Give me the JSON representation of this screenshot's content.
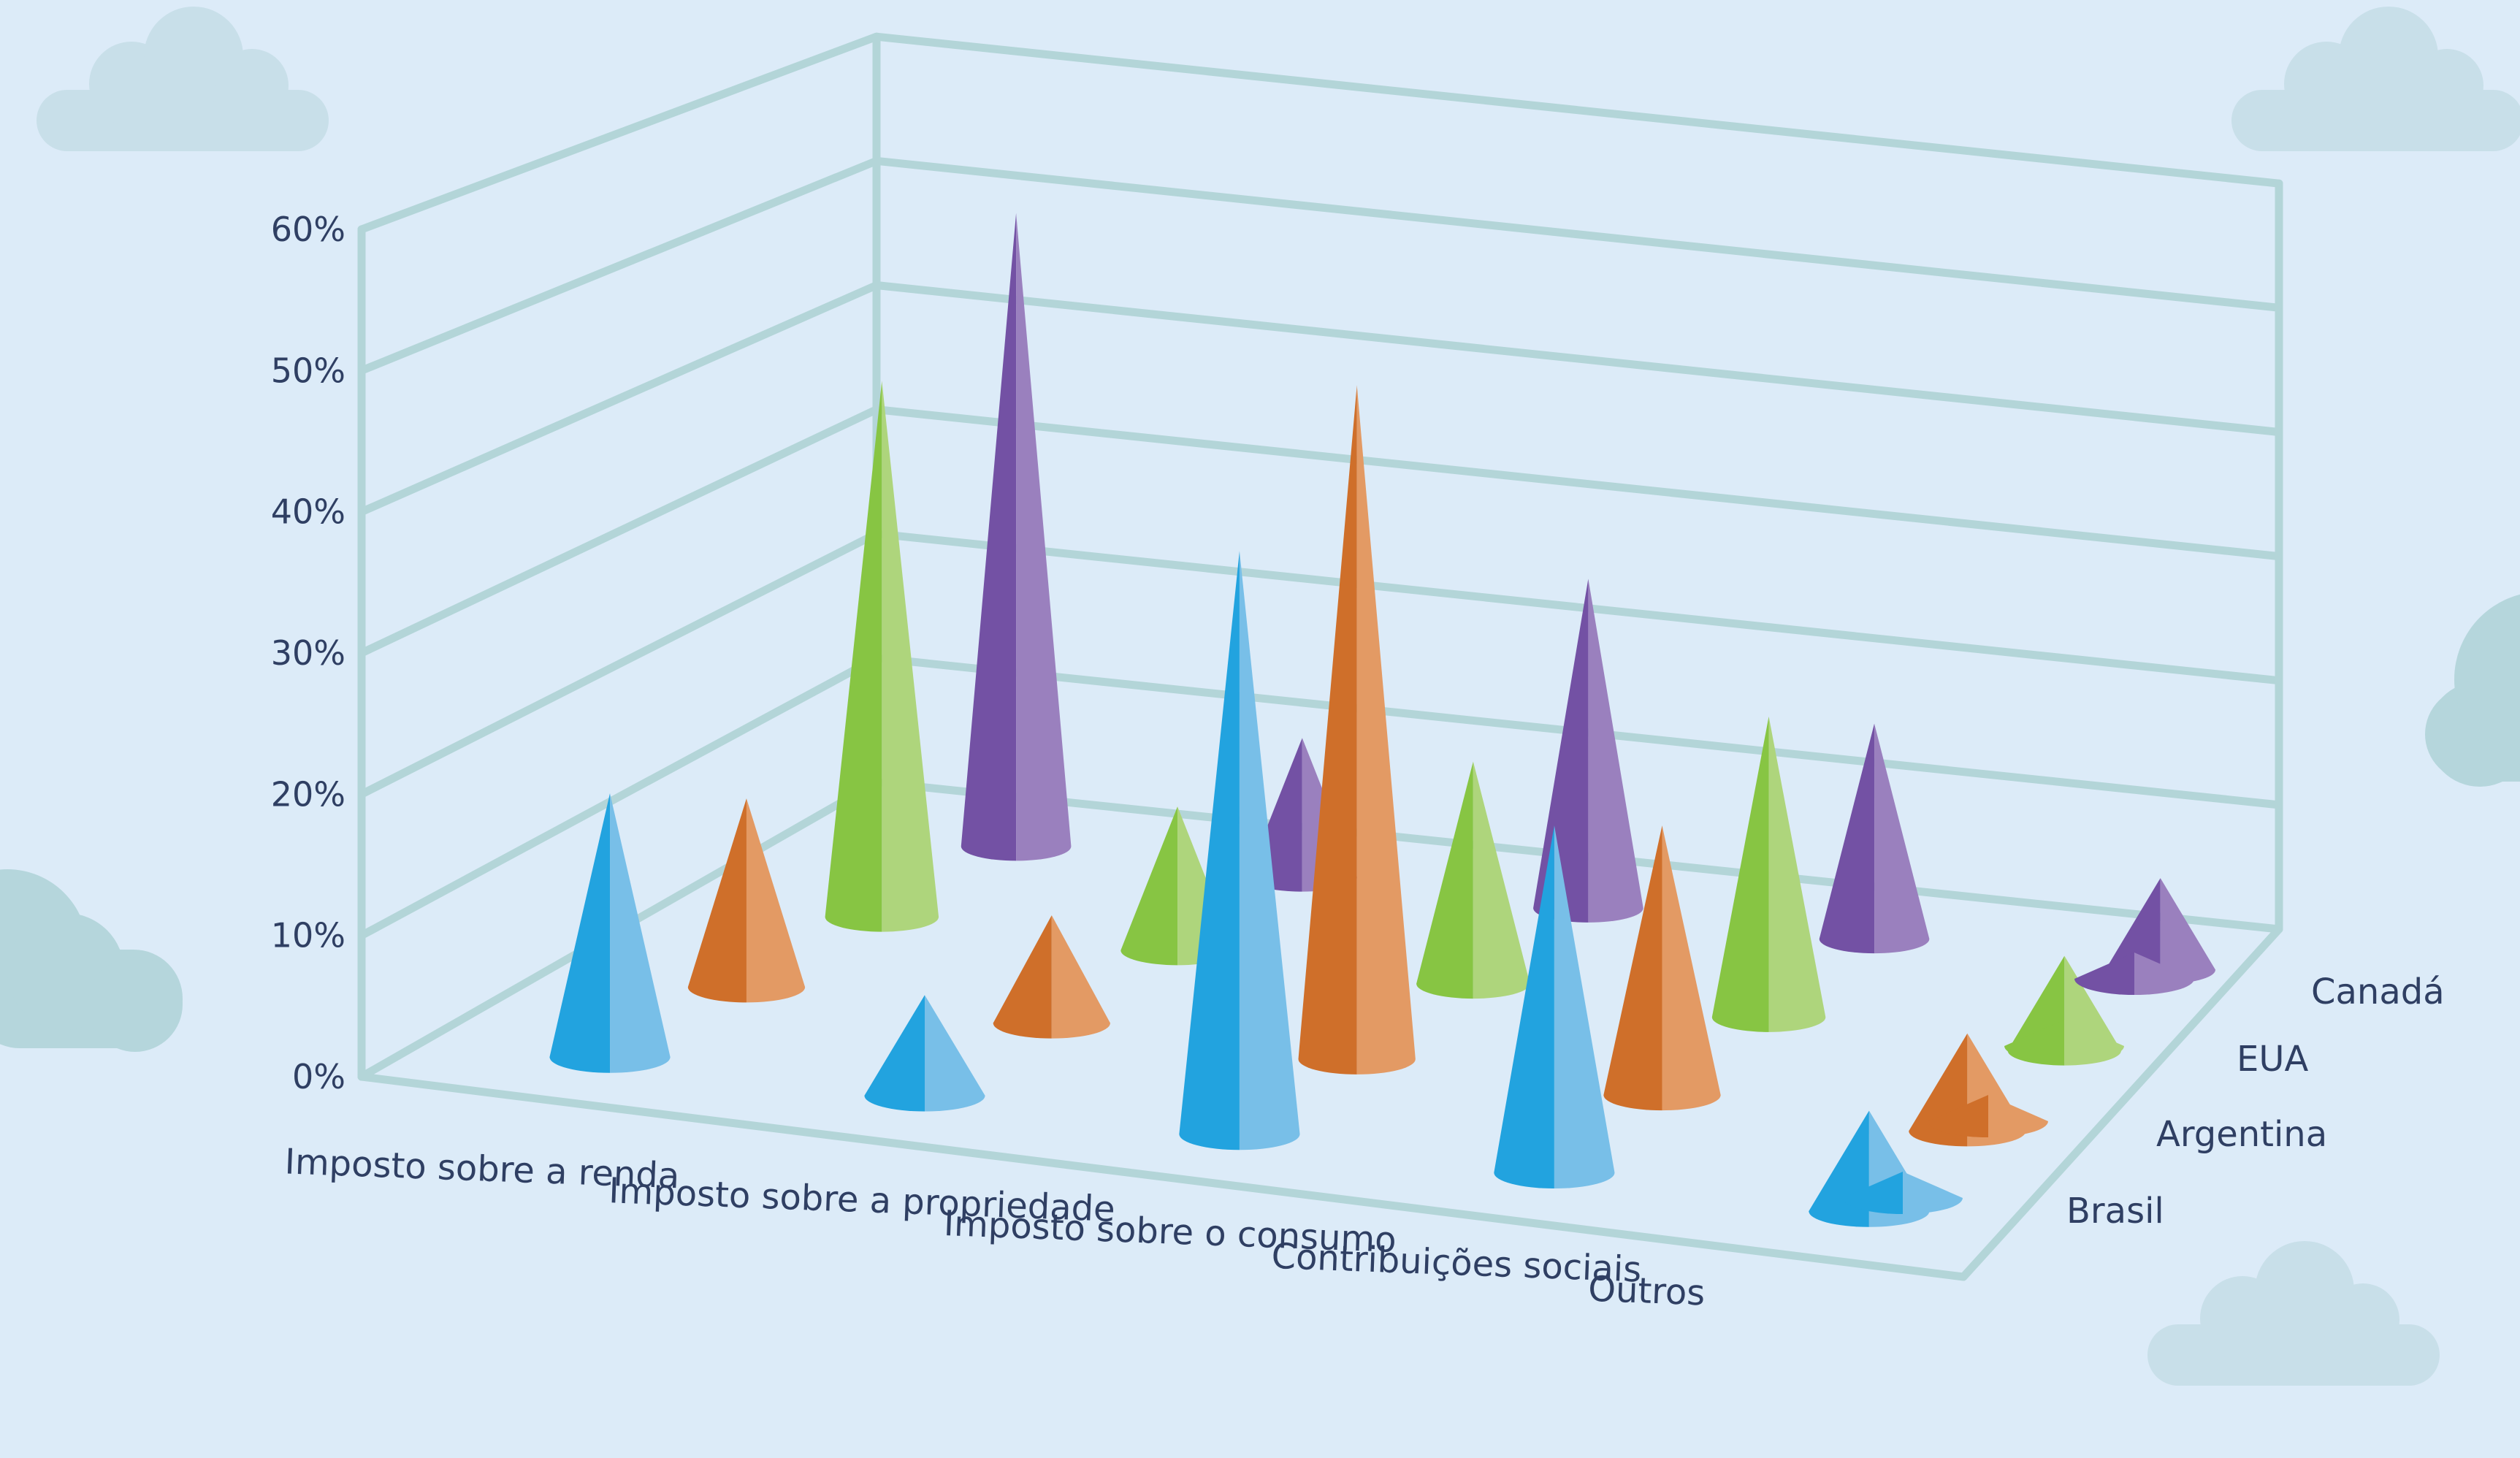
{
  "colors": {
    "background": "#dcebf8",
    "cloud": "#c8dfe9",
    "cloud_teal": "#b5d6dc",
    "frame": "#b3d5d8",
    "text": "#2f3f63"
  },
  "chart_data": {
    "type": "3d-cone",
    "title": "",
    "xlabel": "",
    "ylabel": "",
    "ylim": [
      0,
      60
    ],
    "y_ticks": [
      "0%",
      "10%",
      "20%",
      "30%",
      "40%",
      "50%",
      "60%"
    ],
    "categories": [
      "Imposto sobre a renda",
      "Imposto sobre a propriedade",
      "Imposto sobre o consumo",
      "Contribuições sociais",
      "Outros"
    ],
    "series": [
      {
        "name": "Brasil",
        "color_dark": "#22a3df",
        "color_light": "#78bfe8",
        "values": [
          19,
          7,
          42,
          25,
          0
        ]
      },
      {
        "name": "Argentina",
        "color_dark": "#cf6f2a",
        "color_light": "#e39a64",
        "values": [
          14,
          8,
          50,
          20,
          0
        ]
      },
      {
        "name": "EUA",
        "color_dark": "#87c543",
        "color_light": "#aed57c",
        "values": [
          41,
          11,
          17,
          23,
          0
        ]
      },
      {
        "name": "Canadá",
        "color_dark": "#7351a4",
        "color_light": "#9a80be",
        "values": [
          50,
          11,
          26,
          17,
          0
        ]
      }
    ],
    "legend_position": "right",
    "grid": true
  }
}
